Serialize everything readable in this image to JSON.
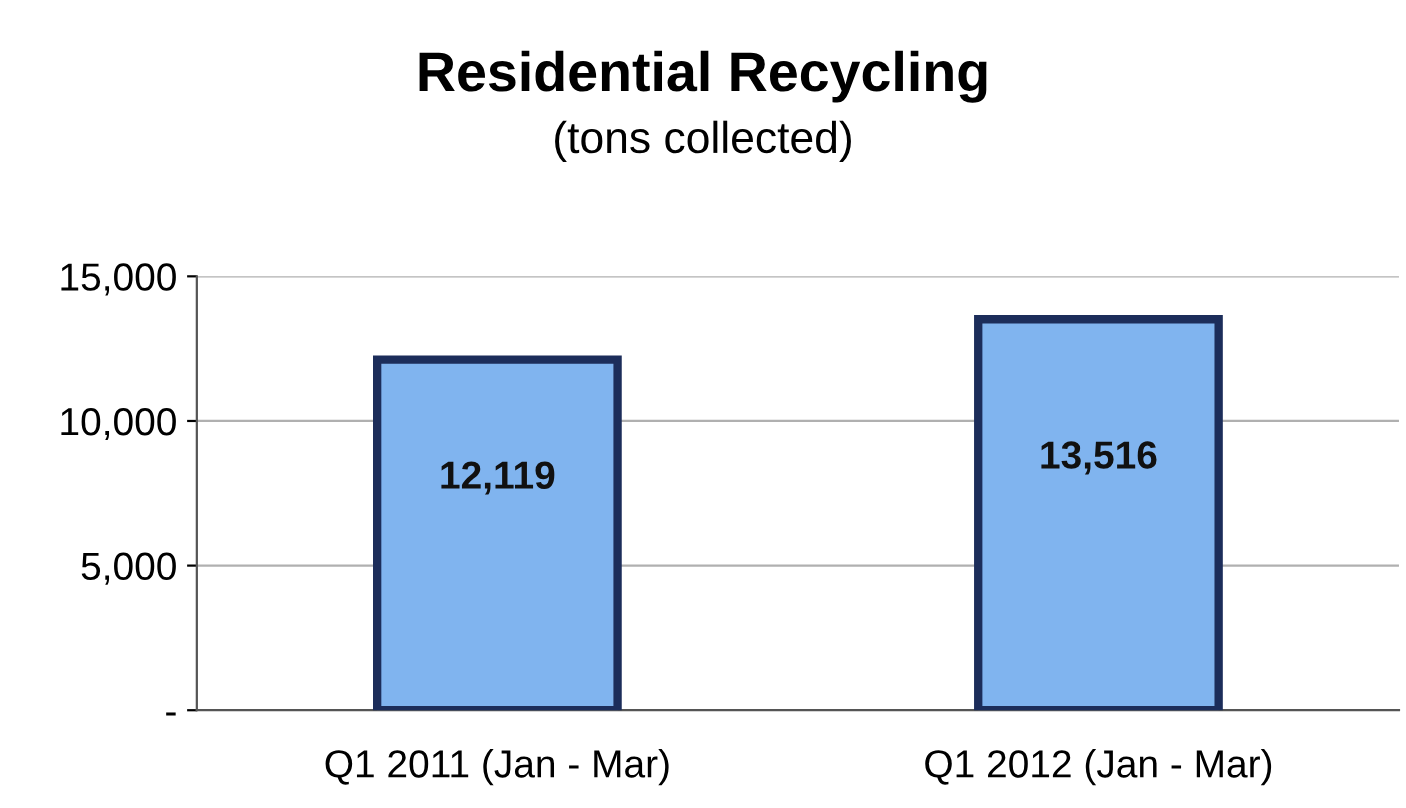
{
  "chart_data": {
    "type": "bar",
    "title": "Residential Recycling",
    "subtitle": "(tons collected)",
    "categories": [
      "Q1 2011 (Jan - Mar)",
      "Q1 2012 (Jan - Mar)"
    ],
    "values": [
      12119,
      13516
    ],
    "value_labels": [
      "12,119",
      "13,516"
    ],
    "color": "#80b4ef",
    "ylim": [
      0,
      15000
    ],
    "yticks": [
      {
        "value": 0,
        "label": "-"
      },
      {
        "value": 5000,
        "label": "5,000"
      },
      {
        "value": 10000,
        "label": "10,000"
      },
      {
        "value": 15000,
        "label": "15,000"
      }
    ],
    "grid": "y"
  }
}
